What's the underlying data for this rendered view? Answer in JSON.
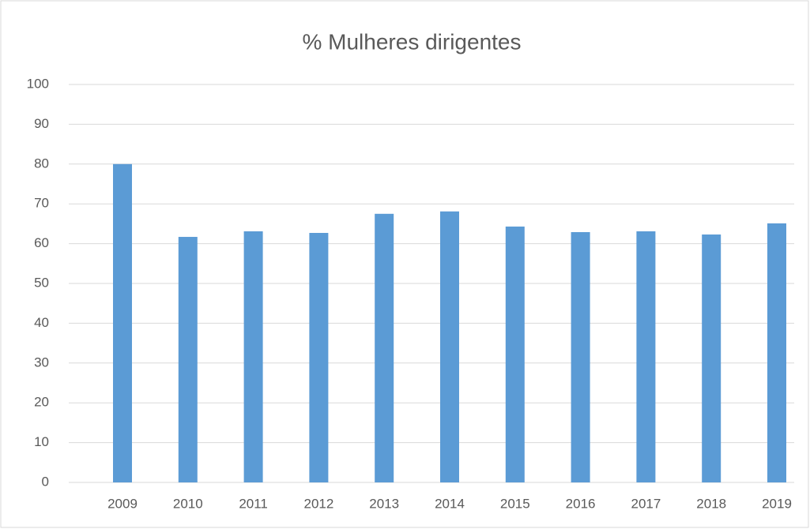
{
  "chart_data": {
    "type": "bar",
    "title": "% Mulheres  dirigentes",
    "categories": [
      "2009",
      "2010",
      "2011",
      "2012",
      "2013",
      "2014",
      "2015",
      "2016",
      "2017",
      "2018",
      "2019"
    ],
    "values": [
      80,
      61.7,
      63.1,
      62.7,
      67.5,
      68.1,
      64.3,
      62.9,
      63.1,
      62.3,
      65.1
    ],
    "color": "#5b9bd5",
    "ylim": [
      0,
      100
    ],
    "yticks": [
      0,
      10,
      20,
      30,
      40,
      50,
      60,
      70,
      80,
      90,
      100
    ],
    "grid": true
  }
}
